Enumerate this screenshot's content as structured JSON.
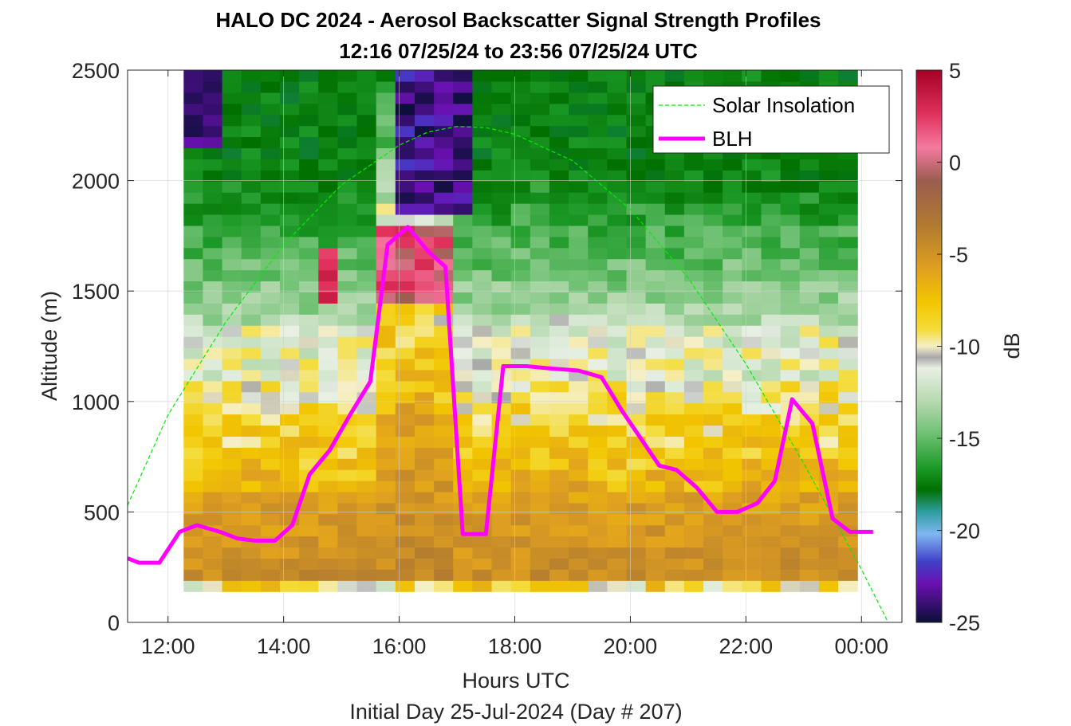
{
  "chart_data": {
    "type": "heatmap",
    "title": "HALO DC 2024 - Aerosol Backscatter Signal Strength Profiles",
    "subtitle": "12:16 07/25/24 to 23:56 07/25/24  UTC",
    "xlabel": "Hours UTC",
    "footer": "Initial Day 25-Jul-2024 (Day # 207)",
    "ylabel": "Altitude (m)",
    "colorbar_label": "dB",
    "xlim": [
      11.3,
      24.7
    ],
    "ylim": [
      0,
      2500
    ],
    "x_ticks": [
      12,
      14,
      16,
      18,
      20,
      22,
      24
    ],
    "x_tick_labels": [
      "12:00",
      "14:00",
      "16:00",
      "18:00",
      "20:00",
      "22:00",
      "00:00"
    ],
    "y_ticks": [
      0,
      500,
      1000,
      1500,
      2000,
      2500
    ],
    "y_tick_labels": [
      "0",
      "500",
      "1000",
      "1500",
      "2000",
      "2500"
    ],
    "colorbar_lim": [
      -25,
      5
    ],
    "colorbar_ticks": [
      5,
      0,
      -5,
      -10,
      -15,
      -20,
      -25
    ],
    "colorbar_tick_labels": [
      "5",
      "0",
      "-5",
      "-10",
      "-15",
      "-20",
      "-25"
    ],
    "grid": true,
    "legend_position": "top-right",
    "series": [
      {
        "name": "Solar Insolation",
        "style": "dashed",
        "color": "#00ee00",
        "x": [
          11.3,
          12.0,
          13.0,
          14.0,
          15.0,
          16.0,
          16.5,
          17.0,
          17.5,
          18.0,
          19.0,
          20.0,
          21.0,
          22.0,
          23.0,
          24.0,
          24.5
        ],
        "y": [
          530,
          940,
          1360,
          1710,
          1980,
          2160,
          2220,
          2245,
          2240,
          2210,
          2090,
          1870,
          1560,
          1170,
          720,
          240,
          -20
        ]
      },
      {
        "name": "BLH",
        "style": "solid",
        "color": "#ff00ff",
        "x": [
          11.3,
          11.5,
          11.85,
          12.2,
          12.5,
          12.9,
          13.2,
          13.5,
          13.85,
          14.15,
          14.45,
          14.8,
          15.15,
          15.5,
          15.8,
          16.15,
          16.5,
          16.8,
          17.1,
          17.5,
          17.8,
          18.2,
          18.6,
          19.1,
          19.5,
          19.85,
          20.5,
          20.8,
          21.15,
          21.5,
          21.85,
          22.2,
          22.5,
          22.8,
          23.15,
          23.5,
          23.8,
          24.2
        ],
        "y": [
          290,
          270,
          270,
          410,
          440,
          410,
          380,
          370,
          370,
          440,
          670,
          780,
          940,
          1090,
          1710,
          1790,
          1680,
          1610,
          400,
          400,
          1160,
          1160,
          1150,
          1140,
          1110,
          960,
          710,
          690,
          610,
          500,
          500,
          540,
          640,
          1010,
          900,
          470,
          410,
          410
        ]
      }
    ],
    "heatmap_description": "Backscatter signal strength (dB) as columns of colored cells from about 12:16 to 23:56 UTC and ~140 m to 2500 m altitude. Low levels mostly -5 to -10 dB (yellow/brown), upper levels -12 to -18 dB (green); very low values (-20 to -25 dB, blue/purple) near 16:00-17:00 above ~1800 m; high values (0 to 5 dB, red) near the aerosol top around 1500-1800 m."
  }
}
